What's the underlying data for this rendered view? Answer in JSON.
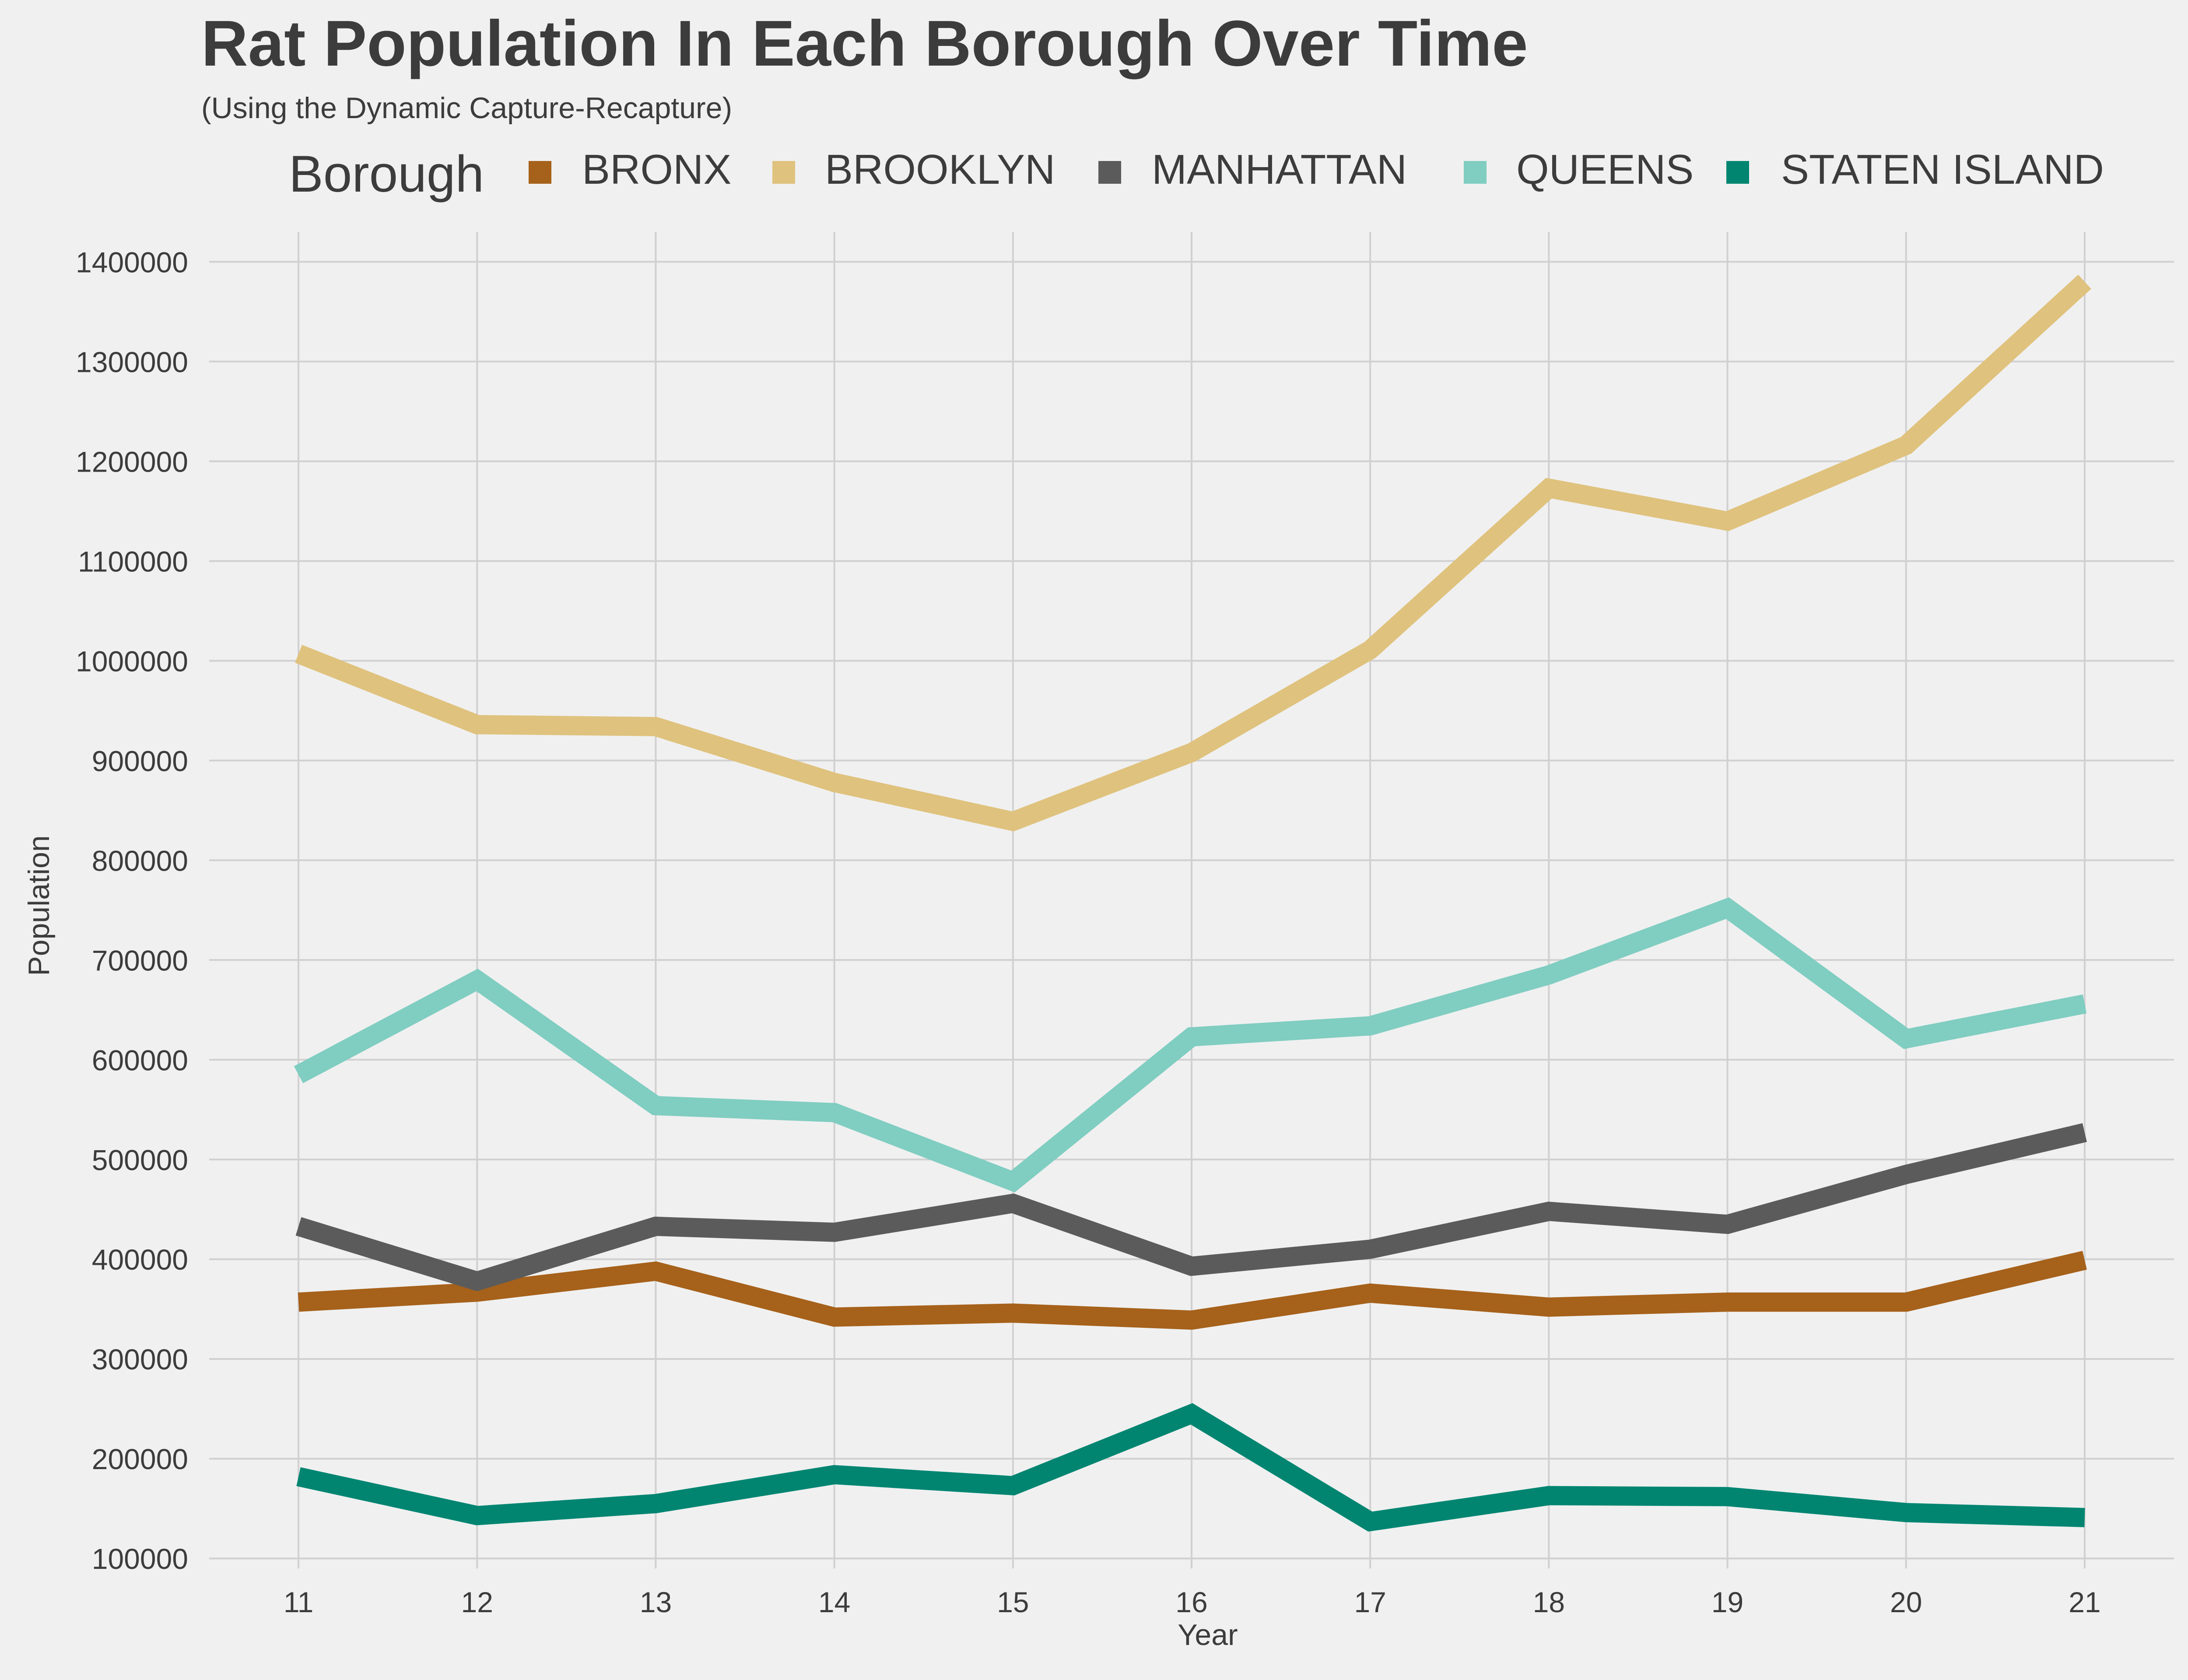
{
  "chart_data": {
    "type": "line",
    "title": "Rat Population In Each Borough Over Time",
    "subtitle": "(Using the Dynamic Capture-Recapture)",
    "xlabel": "Year",
    "ylabel": "Population",
    "legend_title": "Borough",
    "legend_position": "top",
    "grid": true,
    "x": [
      11,
      12,
      13,
      14,
      15,
      16,
      17,
      18,
      19,
      20,
      21
    ],
    "x_ticks": [
      "11",
      "12",
      "13",
      "14",
      "15",
      "16",
      "17",
      "18",
      "19",
      "20",
      "21"
    ],
    "xlim": [
      10.5,
      21.5
    ],
    "ylim": [
      90000,
      1430000
    ],
    "y_ticks": [
      "100000",
      "200000",
      "300000",
      "400000",
      "500000",
      "600000",
      "700000",
      "800000",
      "900000",
      "1000000",
      "1100000",
      "1200000",
      "1300000",
      "1400000"
    ],
    "series": [
      {
        "name": "BRONX",
        "color": "#a6611a",
        "values": [
          357000,
          367000,
          388000,
          342000,
          346000,
          339000,
          366000,
          352000,
          357000,
          357000,
          399000
        ]
      },
      {
        "name": "BROOKLYN",
        "color": "#dfc27d",
        "values": [
          1007000,
          936000,
          934000,
          878000,
          839000,
          908000,
          1011000,
          1173000,
          1140000,
          1216000,
          1380000
        ]
      },
      {
        "name": "MANHATTAN",
        "color": "#5b5b5b",
        "values": [
          433000,
          378000,
          433000,
          427000,
          456000,
          393000,
          410000,
          448000,
          435000,
          485000,
          527000
        ]
      },
      {
        "name": "QUEENS",
        "color": "#80cdc1",
        "values": [
          585000,
          680000,
          554000,
          547000,
          478000,
          623000,
          634000,
          685000,
          752000,
          621000,
          656000
        ]
      },
      {
        "name": "STATEN ISLAND",
        "color": "#018571",
        "values": [
          182000,
          143000,
          155000,
          184000,
          173000,
          245000,
          137000,
          163000,
          162000,
          146000,
          141000
        ]
      }
    ]
  }
}
